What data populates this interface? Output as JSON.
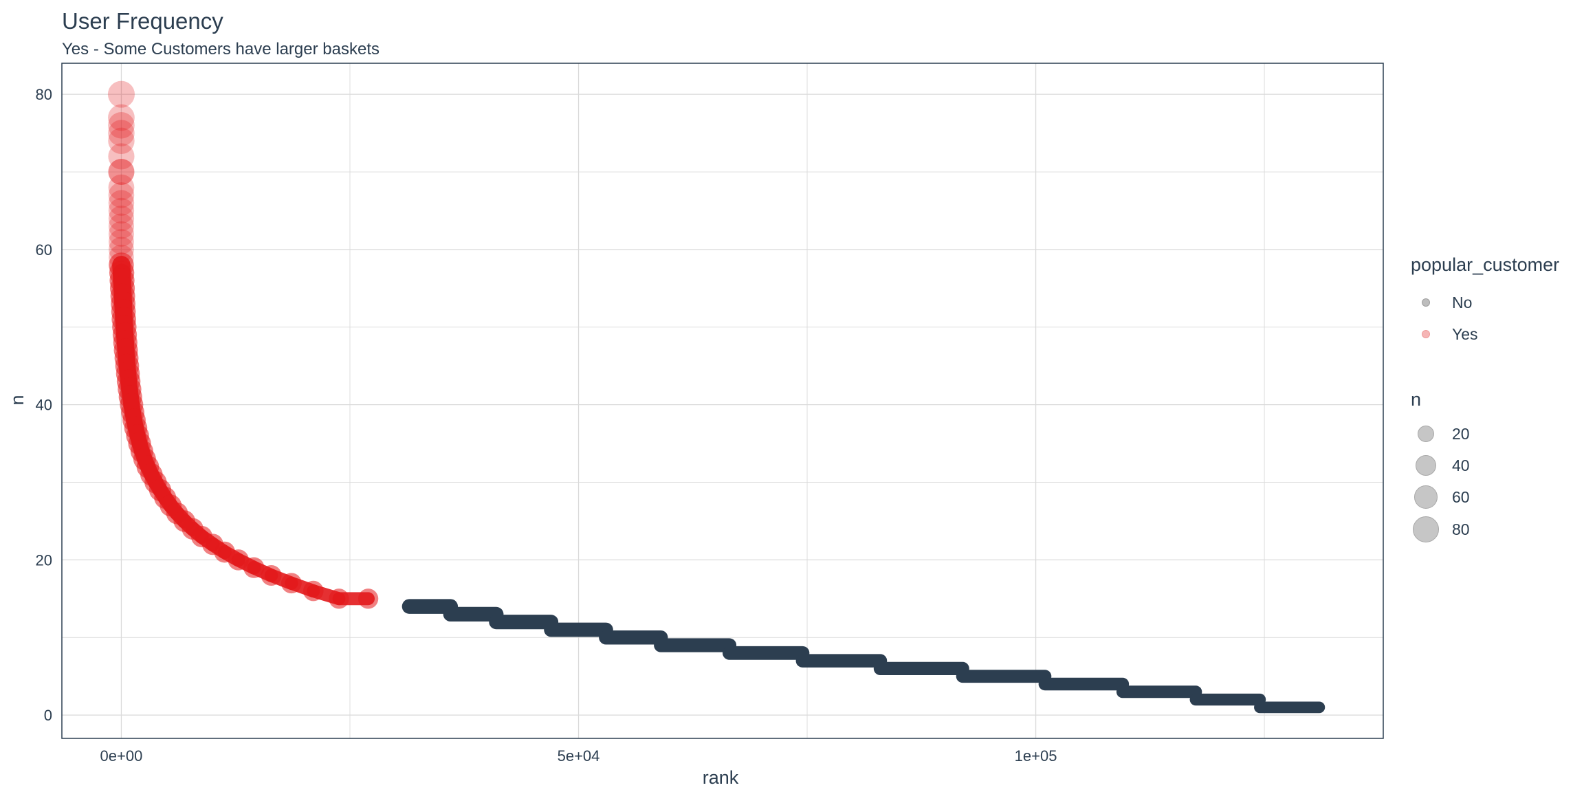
{
  "title": "User Frequency",
  "subtitle": "Yes - Some Customers have larger baskets",
  "colors": {
    "yes": "#e31a1c",
    "no": "#2c3e50",
    "legend_grey": "#bdbdbd",
    "grid": "#dadada",
    "panel_border": "#2c3e50"
  },
  "chart_data": {
    "type": "scatter",
    "xlabel": "rank",
    "ylabel": "n",
    "xlim": [
      -6500,
      138000
    ],
    "ylim": [
      -3,
      84
    ],
    "x_ticks": [
      0,
      50000,
      100000
    ],
    "x_tick_labels": [
      "0e+00",
      "5e+04",
      "1e+05"
    ],
    "y_ticks": [
      0,
      20,
      40,
      60,
      80
    ],
    "y_tick_labels": [
      "0",
      "20",
      "40",
      "60",
      "80"
    ],
    "grid": true,
    "legend_position": "right",
    "threshold_n": 15,
    "color_legend": {
      "title": "popular_customer",
      "entries": [
        "No",
        "Yes"
      ]
    },
    "size_legend": {
      "title": "n",
      "entries": [
        20,
        40,
        60,
        80
      ]
    },
    "series": [
      {
        "name": "Yes",
        "points": [
          [
            0,
            80
          ],
          [
            0,
            77
          ],
          [
            0,
            76
          ],
          [
            0,
            75
          ],
          [
            0,
            74
          ],
          [
            0,
            72
          ],
          [
            0,
            70
          ],
          [
            0,
            70
          ],
          [
            0,
            68
          ],
          [
            0,
            67
          ],
          [
            0,
            66
          ],
          [
            0,
            65
          ],
          [
            0,
            64
          ],
          [
            0,
            63
          ],
          [
            0,
            62
          ],
          [
            0,
            61
          ],
          [
            0,
            60
          ],
          [
            0,
            59
          ],
          [
            0,
            58
          ],
          [
            50,
            57
          ],
          [
            80,
            56
          ],
          [
            120,
            55
          ],
          [
            160,
            54
          ],
          [
            200,
            53
          ],
          [
            240,
            52
          ],
          [
            280,
            51
          ],
          [
            330,
            50
          ],
          [
            380,
            49
          ],
          [
            440,
            48
          ],
          [
            500,
            47
          ],
          [
            570,
            46
          ],
          [
            640,
            45
          ],
          [
            720,
            44
          ],
          [
            800,
            43
          ],
          [
            900,
            42
          ],
          [
            1000,
            41
          ],
          [
            1120,
            40
          ],
          [
            1250,
            39
          ],
          [
            1400,
            38
          ],
          [
            1580,
            37
          ],
          [
            1780,
            36
          ],
          [
            2000,
            35
          ],
          [
            2250,
            34
          ],
          [
            2550,
            33
          ],
          [
            2900,
            32
          ],
          [
            3300,
            31
          ],
          [
            3750,
            30
          ],
          [
            4250,
            29
          ],
          [
            4800,
            28
          ],
          [
            5400,
            27
          ],
          [
            6100,
            26
          ],
          [
            6900,
            25
          ],
          [
            7800,
            24
          ],
          [
            8800,
            23
          ],
          [
            10000,
            22
          ],
          [
            11300,
            21
          ],
          [
            12800,
            20
          ],
          [
            14500,
            19
          ],
          [
            16400,
            18
          ],
          [
            18600,
            17
          ],
          [
            21000,
            16
          ],
          [
            23800,
            15
          ],
          [
            27000,
            15
          ]
        ]
      },
      {
        "name": "No",
        "segments": [
          {
            "n": 14,
            "x_start": 31500,
            "x_end": 36000
          },
          {
            "n": 13,
            "x_start": 36000,
            "x_end": 41000
          },
          {
            "n": 12,
            "x_start": 41000,
            "x_end": 47000
          },
          {
            "n": 11,
            "x_start": 47000,
            "x_end": 53000
          },
          {
            "n": 10,
            "x_start": 53000,
            "x_end": 59000
          },
          {
            "n": 9,
            "x_start": 59000,
            "x_end": 66500
          },
          {
            "n": 8,
            "x_start": 66500,
            "x_end": 74500
          },
          {
            "n": 7,
            "x_start": 74500,
            "x_end": 83000
          },
          {
            "n": 6,
            "x_start": 83000,
            "x_end": 92000
          },
          {
            "n": 5,
            "x_start": 92000,
            "x_end": 101000
          },
          {
            "n": 4,
            "x_start": 101000,
            "x_end": 109500
          },
          {
            "n": 3,
            "x_start": 109500,
            "x_end": 117500
          },
          {
            "n": 2,
            "x_start": 117500,
            "x_end": 124500
          },
          {
            "n": 1,
            "x_start": 124500,
            "x_end": 131000
          }
        ]
      }
    ]
  }
}
